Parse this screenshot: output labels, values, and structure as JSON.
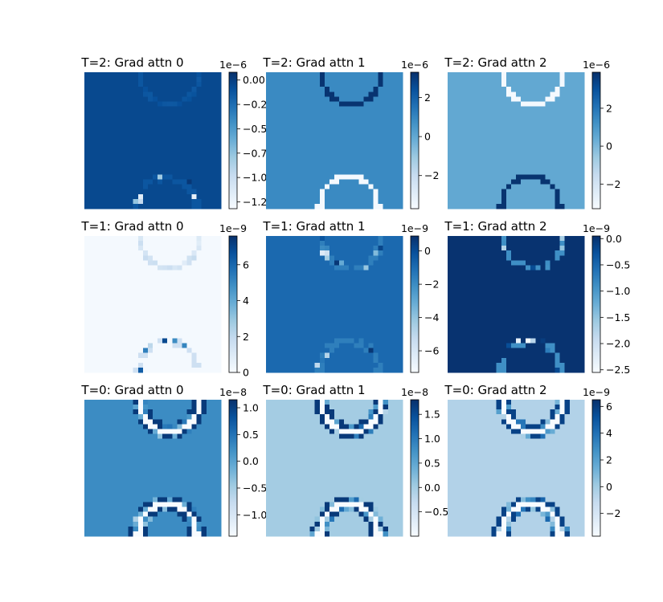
{
  "colormap": {
    "name": "Blues",
    "stops": [
      "#f7fbff",
      "#deebf7",
      "#c6dbef",
      "#9ecae1",
      "#6baed6",
      "#4292c6",
      "#2171b5",
      "#08519c",
      "#08306b"
    ]
  },
  "chart_data": [
    {
      "type": "heatmap",
      "title": "T=2: Grad attn 0",
      "exponent": "1e−6",
      "vmin": -1.32,
      "vmax": 0.08,
      "background": -0.05,
      "ring_val": -0.12,
      "upper_ring": "faint",
      "lower_ring": "speckle",
      "colorbar_ticks": [
        {
          "v": 0.0,
          "label": "0.00"
        },
        {
          "v": -0.25,
          "label": "−0.25"
        },
        {
          "v": -0.5,
          "label": "−0.50"
        },
        {
          "v": -0.75,
          "label": "−0.75"
        },
        {
          "v": -1.0,
          "label": "−1.00"
        },
        {
          "v": -1.25,
          "label": "−1.25"
        }
      ]
    },
    {
      "type": "heatmap",
      "title": "T=2: Grad attn 1",
      "exponent": "1e−6",
      "vmin": -3.7,
      "vmax": 3.3,
      "background": 0.9,
      "ring_val": 3.2,
      "upper_ring": "solid",
      "lower_ring": "solid-low",
      "low_val": -3.6,
      "colorbar_ticks": [
        {
          "v": 2,
          "label": "2"
        },
        {
          "v": 0,
          "label": "0"
        },
        {
          "v": -2,
          "label": "−2"
        }
      ]
    },
    {
      "type": "heatmap",
      "title": "T=2: Grad attn 2",
      "exponent": "1e−6",
      "vmin": -3.3,
      "vmax": 3.9,
      "background": 0.5,
      "ring_val": -3.2,
      "upper_ring": "solid",
      "lower_ring": "solid-high",
      "high_val": 3.8,
      "colorbar_ticks": [
        {
          "v": 2,
          "label": "2"
        },
        {
          "v": 0,
          "label": "0"
        },
        {
          "v": -2,
          "label": "−2"
        }
      ]
    },
    {
      "type": "heatmap",
      "title": "T=1: Grad attn 0",
      "exponent": "1e−9",
      "vmin": 0,
      "vmax": 7.6,
      "background": 0.1,
      "ring_val": 1.6,
      "upper_ring": "faint",
      "lower_ring": "speckle",
      "colorbar_ticks": [
        {
          "v": 0,
          "label": "0"
        },
        {
          "v": 2,
          "label": "2"
        },
        {
          "v": 4,
          "label": "4"
        },
        {
          "v": 6,
          "label": "6"
        }
      ]
    },
    {
      "type": "heatmap",
      "title": "T=1: Grad attn 1",
      "exponent": "1e−9",
      "vmin": -7.3,
      "vmax": 0.9,
      "background": -0.9,
      "ring_val": -1.6,
      "upper_ring": "speckle",
      "lower_ring": "speckle",
      "colorbar_ticks": [
        {
          "v": 0,
          "label": "0"
        },
        {
          "v": -2,
          "label": "−2"
        },
        {
          "v": -4,
          "label": "−4"
        },
        {
          "v": -6,
          "label": "−6"
        }
      ]
    },
    {
      "type": "heatmap",
      "title": "T=1: Grad attn 2",
      "exponent": "1e−9",
      "vmin": -2.55,
      "vmax": 0.05,
      "background": 0.02,
      "ring_val": -0.9,
      "upper_ring": "speckle",
      "lower_ring": "speckle",
      "colorbar_ticks": [
        {
          "v": 0.0,
          "label": "0.0"
        },
        {
          "v": -0.5,
          "label": "−0.5"
        },
        {
          "v": -1.0,
          "label": "−1.0"
        },
        {
          "v": -1.5,
          "label": "−1.5"
        },
        {
          "v": -2.0,
          "label": "−2.0"
        },
        {
          "v": -2.5,
          "label": "−2.5"
        }
      ]
    },
    {
      "type": "heatmap",
      "title": "T=0: Grad attn 0",
      "exponent": "1e−8",
      "vmin": -1.4,
      "vmax": 1.15,
      "background": 0.25,
      "ring_val": 1.05,
      "upper_ring": "double",
      "lower_ring": "double",
      "colorbar_ticks": [
        {
          "v": 1.0,
          "label": "1.0"
        },
        {
          "v": 0.5,
          "label": "0.5"
        },
        {
          "v": 0.0,
          "label": "0.0"
        },
        {
          "v": -0.5,
          "label": "−0.5"
        },
        {
          "v": -1.0,
          "label": "−1.0"
        }
      ]
    },
    {
      "type": "heatmap",
      "title": "T=0: Grad attn 1",
      "exponent": "1e−8",
      "vmin": -1.0,
      "vmax": 1.8,
      "background": 0.0,
      "ring_val": 1.7,
      "upper_ring": "double",
      "lower_ring": "double",
      "colorbar_ticks": [
        {
          "v": 1.5,
          "label": "1.5"
        },
        {
          "v": 1.0,
          "label": "1.0"
        },
        {
          "v": 0.5,
          "label": "0.5"
        },
        {
          "v": 0.0,
          "label": "0.0"
        },
        {
          "v": -0.5,
          "label": "−0.5"
        }
      ]
    },
    {
      "type": "heatmap",
      "title": "T=0: Grad attn 2",
      "exponent": "1e−9",
      "vmin": -3.7,
      "vmax": 6.5,
      "background": -0.5,
      "ring_val": 5.8,
      "upper_ring": "double",
      "lower_ring": "double",
      "colorbar_ticks": [
        {
          "v": 6,
          "label": "6"
        },
        {
          "v": 4,
          "label": "4"
        },
        {
          "v": 2,
          "label": "2"
        },
        {
          "v": 0,
          "label": "0"
        },
        {
          "v": -2,
          "label": "−2"
        }
      ]
    }
  ]
}
